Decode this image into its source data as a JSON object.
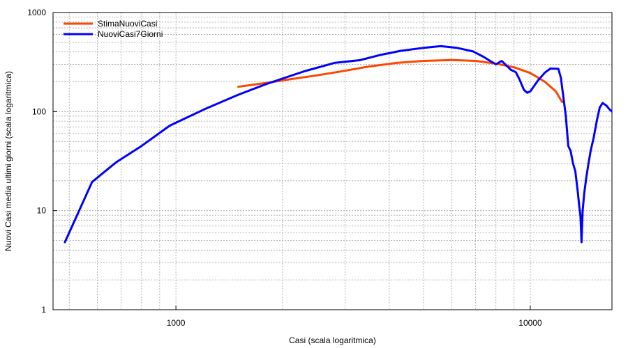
{
  "chart_data": {
    "type": "line",
    "xlabel": "Casi (scala logaritmica)",
    "ylabel": "Nuovi Casi media ultimi giorni (scala logaritmica)",
    "x_scale": "log",
    "y_scale": "log",
    "xlim": [
      450,
      17000
    ],
    "ylim": [
      1,
      1000
    ],
    "x_ticks": [
      {
        "value": 1000,
        "label": "1000"
      },
      {
        "value": 10000,
        "label": "10000"
      }
    ],
    "y_ticks": [
      {
        "value": 1,
        "label": "1"
      },
      {
        "value": 10,
        "label": "10"
      },
      {
        "value": 100,
        "label": "100"
      },
      {
        "value": 1000,
        "label": "1000"
      }
    ],
    "grid": true,
    "legend_position": "top-left",
    "series": [
      {
        "name": "StimaNuoviCasi",
        "color": "#ff4500",
        "points": [
          [
            1500,
            178
          ],
          [
            1800,
            195
          ],
          [
            2100,
            212
          ],
          [
            2500,
            232
          ],
          [
            3000,
            258
          ],
          [
            3500,
            285
          ],
          [
            4200,
            310
          ],
          [
            5000,
            325
          ],
          [
            6000,
            332
          ],
          [
            7000,
            325
          ],
          [
            8000,
            305
          ],
          [
            9000,
            280
          ],
          [
            10000,
            245
          ],
          [
            11000,
            200
          ],
          [
            11800,
            160
          ],
          [
            12300,
            125
          ]
        ]
      },
      {
        "name": "NuoviCasi7Giorni",
        "color": "#0000ff",
        "points": [
          [
            486,
            4.8
          ],
          [
            580,
            19.5
          ],
          [
            680,
            31
          ],
          [
            800,
            45
          ],
          [
            960,
            72
          ],
          [
            1200,
            105
          ],
          [
            1500,
            148
          ],
          [
            1800,
            190
          ],
          [
            2300,
            255
          ],
          [
            2800,
            310
          ],
          [
            3300,
            330
          ],
          [
            3800,
            375
          ],
          [
            4300,
            410
          ],
          [
            5000,
            440
          ],
          [
            5600,
            458
          ],
          [
            6200,
            440
          ],
          [
            6900,
            405
          ],
          [
            7400,
            355
          ],
          [
            7700,
            325
          ],
          [
            8000,
            300
          ],
          [
            8300,
            325
          ],
          [
            8500,
            300
          ],
          [
            8800,
            265
          ],
          [
            9100,
            250
          ],
          [
            9300,
            215
          ],
          [
            9600,
            165
          ],
          [
            9800,
            155
          ],
          [
            10000,
            160
          ],
          [
            10500,
            205
          ],
          [
            11000,
            248
          ],
          [
            11400,
            272
          ],
          [
            12000,
            270
          ],
          [
            12200,
            220
          ],
          [
            12400,
            140
          ],
          [
            12600,
            90
          ],
          [
            12800,
            45
          ],
          [
            13000,
            40
          ],
          [
            13200,
            30
          ],
          [
            13400,
            25
          ],
          [
            13600,
            16
          ],
          [
            13750,
            11
          ],
          [
            13850,
            9
          ],
          [
            13950,
            4.8
          ],
          [
            14050,
            10
          ],
          [
            14200,
            15
          ],
          [
            14400,
            22
          ],
          [
            14600,
            30
          ],
          [
            14800,
            40
          ],
          [
            15100,
            55
          ],
          [
            15400,
            80
          ],
          [
            15700,
            110
          ],
          [
            16000,
            122
          ],
          [
            16400,
            115
          ],
          [
            16700,
            106
          ],
          [
            17000,
            100
          ]
        ]
      }
    ]
  }
}
